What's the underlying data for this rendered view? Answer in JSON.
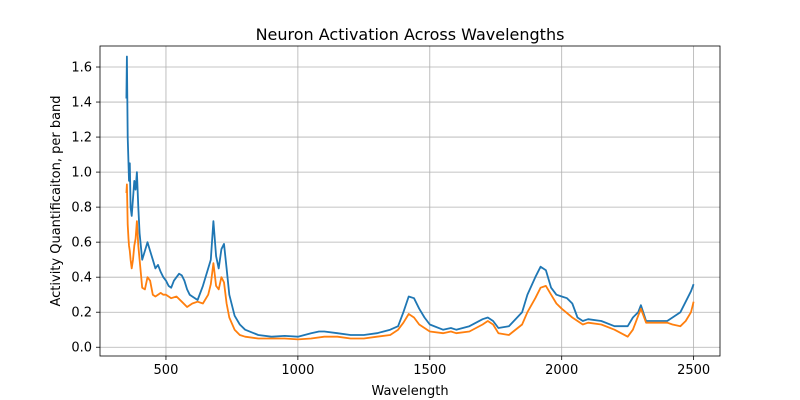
{
  "chart_data": {
    "type": "line",
    "title": "Neuron Activation Across Wavelengths",
    "xlabel": "Wavelength",
    "ylabel": "Activity Quantificaiton, per band",
    "xlim": [
      250,
      2600
    ],
    "ylim": [
      -0.05,
      1.72
    ],
    "xticks": [
      500,
      1000,
      1500,
      2000,
      2500
    ],
    "yticks": [
      0.0,
      0.2,
      0.4,
      0.6,
      0.8,
      1.0,
      1.2,
      1.4,
      1.6
    ],
    "grid": true,
    "colors": {
      "series1": "#1f77b4",
      "series2": "#ff7f0e"
    },
    "series": [
      {
        "x": [
          350,
          352,
          355,
          358,
          360,
          363,
          366,
          370,
          375,
          380,
          385,
          390,
          395,
          400,
          410,
          420,
          430,
          440,
          450,
          460,
          470,
          480,
          490,
          500,
          510,
          520,
          530,
          540,
          550,
          560,
          570,
          580,
          590,
          600,
          620,
          640,
          660,
          670,
          680,
          690,
          700,
          710,
          720,
          730,
          740,
          760,
          780,
          800,
          850,
          900,
          950,
          1000,
          1050,
          1080,
          1100,
          1150,
          1200,
          1250,
          1300,
          1350,
          1380,
          1400,
          1420,
          1440,
          1460,
          1480,
          1500,
          1550,
          1580,
          1600,
          1650,
          1700,
          1720,
          1740,
          1760,
          1800,
          1850,
          1870,
          1900,
          1920,
          1940,
          1960,
          1980,
          2000,
          2020,
          2040,
          2060,
          2080,
          2100,
          2150,
          2200,
          2250,
          2270,
          2290,
          2300,
          2320,
          2350,
          2400,
          2420,
          2450,
          2470,
          2490,
          2500
        ],
        "values": [
          1.42,
          1.66,
          1.2,
          1.05,
          0.95,
          1.05,
          0.8,
          0.75,
          0.85,
          0.95,
          0.9,
          1.0,
          0.8,
          0.65,
          0.5,
          0.55,
          0.6,
          0.55,
          0.5,
          0.45,
          0.47,
          0.43,
          0.4,
          0.38,
          0.35,
          0.34,
          0.38,
          0.4,
          0.42,
          0.41,
          0.38,
          0.33,
          0.3,
          0.29,
          0.27,
          0.35,
          0.45,
          0.5,
          0.72,
          0.52,
          0.45,
          0.56,
          0.59,
          0.45,
          0.3,
          0.18,
          0.13,
          0.1,
          0.07,
          0.06,
          0.065,
          0.06,
          0.08,
          0.09,
          0.09,
          0.08,
          0.07,
          0.07,
          0.08,
          0.1,
          0.12,
          0.2,
          0.29,
          0.28,
          0.22,
          0.17,
          0.13,
          0.1,
          0.11,
          0.1,
          0.12,
          0.16,
          0.17,
          0.15,
          0.11,
          0.12,
          0.2,
          0.3,
          0.4,
          0.46,
          0.44,
          0.34,
          0.3,
          0.29,
          0.28,
          0.25,
          0.17,
          0.15,
          0.16,
          0.15,
          0.12,
          0.12,
          0.17,
          0.2,
          0.24,
          0.15,
          0.15,
          0.15,
          0.17,
          0.2,
          0.26,
          0.32,
          0.36
        ]
      },
      {
        "x": [
          350,
          352,
          355,
          358,
          360,
          363,
          366,
          370,
          375,
          380,
          385,
          390,
          395,
          400,
          410,
          420,
          430,
          440,
          450,
          460,
          470,
          480,
          490,
          500,
          520,
          540,
          560,
          580,
          600,
          620,
          640,
          660,
          670,
          680,
          690,
          700,
          710,
          720,
          730,
          740,
          760,
          780,
          800,
          850,
          900,
          950,
          1000,
          1050,
          1100,
          1150,
          1200,
          1250,
          1300,
          1350,
          1380,
          1400,
          1420,
          1440,
          1460,
          1480,
          1500,
          1550,
          1580,
          1600,
          1650,
          1700,
          1720,
          1740,
          1760,
          1800,
          1850,
          1870,
          1900,
          1920,
          1940,
          1960,
          1980,
          2000,
          2040,
          2080,
          2100,
          2150,
          2200,
          2250,
          2270,
          2290,
          2300,
          2320,
          2350,
          2400,
          2420,
          2450,
          2470,
          2490,
          2500
        ],
        "values": [
          0.88,
          0.93,
          0.7,
          0.62,
          0.58,
          0.55,
          0.5,
          0.45,
          0.5,
          0.58,
          0.62,
          0.72,
          0.58,
          0.5,
          0.34,
          0.33,
          0.4,
          0.38,
          0.3,
          0.29,
          0.3,
          0.31,
          0.3,
          0.3,
          0.28,
          0.29,
          0.26,
          0.23,
          0.25,
          0.26,
          0.25,
          0.3,
          0.36,
          0.48,
          0.35,
          0.33,
          0.4,
          0.37,
          0.25,
          0.17,
          0.1,
          0.07,
          0.06,
          0.05,
          0.05,
          0.05,
          0.045,
          0.05,
          0.06,
          0.06,
          0.05,
          0.05,
          0.06,
          0.07,
          0.1,
          0.14,
          0.19,
          0.17,
          0.13,
          0.11,
          0.09,
          0.08,
          0.09,
          0.08,
          0.09,
          0.13,
          0.15,
          0.13,
          0.08,
          0.07,
          0.13,
          0.2,
          0.28,
          0.34,
          0.35,
          0.3,
          0.25,
          0.22,
          0.17,
          0.13,
          0.14,
          0.13,
          0.1,
          0.06,
          0.1,
          0.18,
          0.22,
          0.14,
          0.14,
          0.14,
          0.13,
          0.12,
          0.15,
          0.2,
          0.26
        ]
      }
    ]
  }
}
